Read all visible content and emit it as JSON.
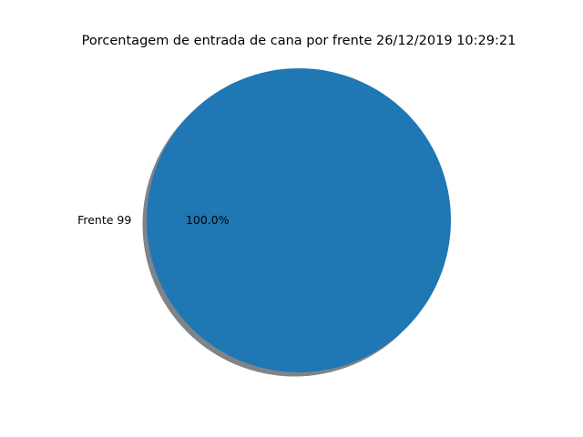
{
  "chart_data": {
    "type": "pie",
    "title": "Porcentagem de entrada de cana por frente 26/12/2019 10:29:21",
    "slices": [
      {
        "label": "Frente 99",
        "value": 100.0,
        "percent_label": "100.0%",
        "color": "#1f77b4"
      }
    ],
    "shadow": true,
    "shadow_color": "#7f8489",
    "autopct_format": "%1.1f%%"
  }
}
